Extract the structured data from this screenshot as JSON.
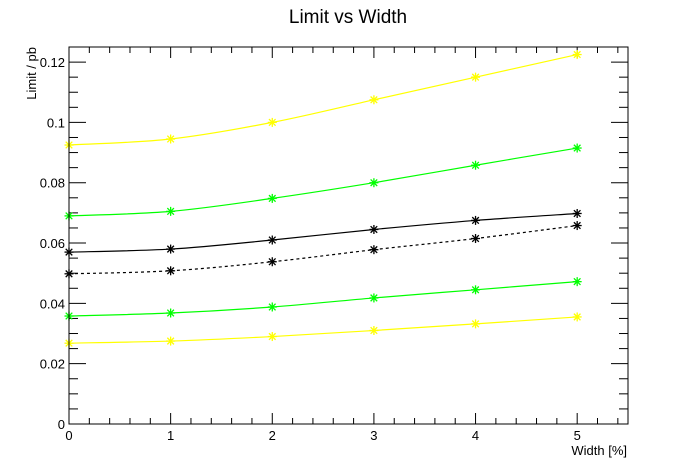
{
  "chart_data": {
    "type": "line",
    "title": "Limit vs Width",
    "xlabel": "Width [%]",
    "ylabel": "Limit / pb",
    "xlim": [
      0,
      5.5
    ],
    "ylim": [
      0,
      0.125
    ],
    "x_ticks": [
      0,
      1,
      2,
      3,
      4,
      5
    ],
    "x_tick_labels": [
      "0",
      "1",
      "2",
      "3",
      "4",
      "5"
    ],
    "y_ticks": [
      0,
      0.02,
      0.04,
      0.06,
      0.08,
      0.1,
      0.12
    ],
    "y_tick_labels": [
      "0",
      "0.02",
      "0.04",
      "0.06",
      "0.08",
      "0.1",
      "0.12"
    ],
    "grid": false,
    "x": [
      0,
      1,
      2,
      3,
      4,
      5
    ],
    "series": [
      {
        "values": [
          0.0925,
          0.0945,
          0.1,
          0.1075,
          0.115,
          0.1225
        ],
        "color": "#ffff00",
        "dash": "solid"
      },
      {
        "values": [
          0.069,
          0.0705,
          0.0748,
          0.08,
          0.0858,
          0.0915
        ],
        "color": "#00ff00",
        "dash": "solid"
      },
      {
        "values": [
          0.057,
          0.058,
          0.061,
          0.0645,
          0.0675,
          0.0698
        ],
        "color": "#000000",
        "dash": "solid"
      },
      {
        "values": [
          0.0498,
          0.0508,
          0.0538,
          0.0578,
          0.0615,
          0.0658
        ],
        "color": "#000000",
        "dash": "dashed"
      },
      {
        "values": [
          0.0358,
          0.0368,
          0.0388,
          0.0418,
          0.0445,
          0.0472
        ],
        "color": "#00ff00",
        "dash": "solid"
      },
      {
        "values": [
          0.0268,
          0.0275,
          0.029,
          0.031,
          0.0332,
          0.0355
        ],
        "color": "#ffff00",
        "dash": "solid"
      }
    ]
  }
}
